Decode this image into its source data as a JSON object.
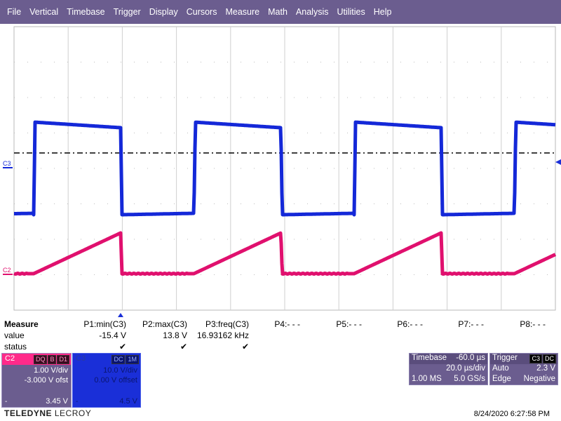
{
  "menu": [
    "File",
    "Vertical",
    "Timebase",
    "Trigger",
    "Display",
    "Cursors",
    "Measure",
    "Math",
    "Analysis",
    "Utilities",
    "Help"
  ],
  "grid": {
    "divisions_x": 10,
    "divisions_y": 8
  },
  "traces": {
    "C3": {
      "label": "C3",
      "color": "#1428d8"
    },
    "C2": {
      "label": "C2",
      "color": "#e0106e"
    }
  },
  "trigger_marker": {
    "color": "#1a2fd8"
  },
  "measure": {
    "title": "Measure",
    "row_labels": [
      "value",
      "status"
    ],
    "params": [
      {
        "name": "P1:min(C3)",
        "value": "-15.4 V",
        "status": "✔"
      },
      {
        "name": "P2:max(C3)",
        "value": "13.8 V",
        "status": "✔"
      },
      {
        "name": "P3:freq(C3)",
        "value": "16.93162 kHz",
        "status": "✔"
      },
      {
        "name": "P4:- - -",
        "value": "",
        "status": ""
      },
      {
        "name": "P5:- - -",
        "value": "",
        "status": ""
      },
      {
        "name": "P6:- - -",
        "value": "",
        "status": ""
      },
      {
        "name": "P7:- - -",
        "value": "",
        "status": ""
      },
      {
        "name": "P8:- - -",
        "value": "",
        "status": ""
      }
    ]
  },
  "channels": {
    "c2": {
      "name": "C2",
      "tags": [
        "DQ",
        "B",
        "D1"
      ],
      "vdiv": "1.00 V/div",
      "offset": "-3.000 V ofst",
      "foot_left": "-",
      "foot_right": "3.45 V",
      "color": "#ff2a8a"
    },
    "c3": {
      "name": "C3",
      "tags": [
        "DC",
        "1M"
      ],
      "vdiv": "10.0 V/div",
      "offset": "0.00 V offset",
      "foot_left": "-",
      "foot_right": "4.5 V",
      "color": "#1a2fd8"
    }
  },
  "timebase": {
    "label": "Timebase",
    "delay": "-60.0 µs",
    "tdiv": "20.0 µs/div",
    "samples": "1.00 MS",
    "rate": "5.0 GS/s"
  },
  "trigger": {
    "label": "Trigger",
    "tags": [
      "C3",
      "DC"
    ],
    "mode": "Auto",
    "level": "2.3 V",
    "type": "Edge",
    "slope": "Negative"
  },
  "brand": {
    "bold": "TELEDYNE",
    "light": "LECROY"
  },
  "datetime": "8/24/2020 6:27:58 PM"
}
